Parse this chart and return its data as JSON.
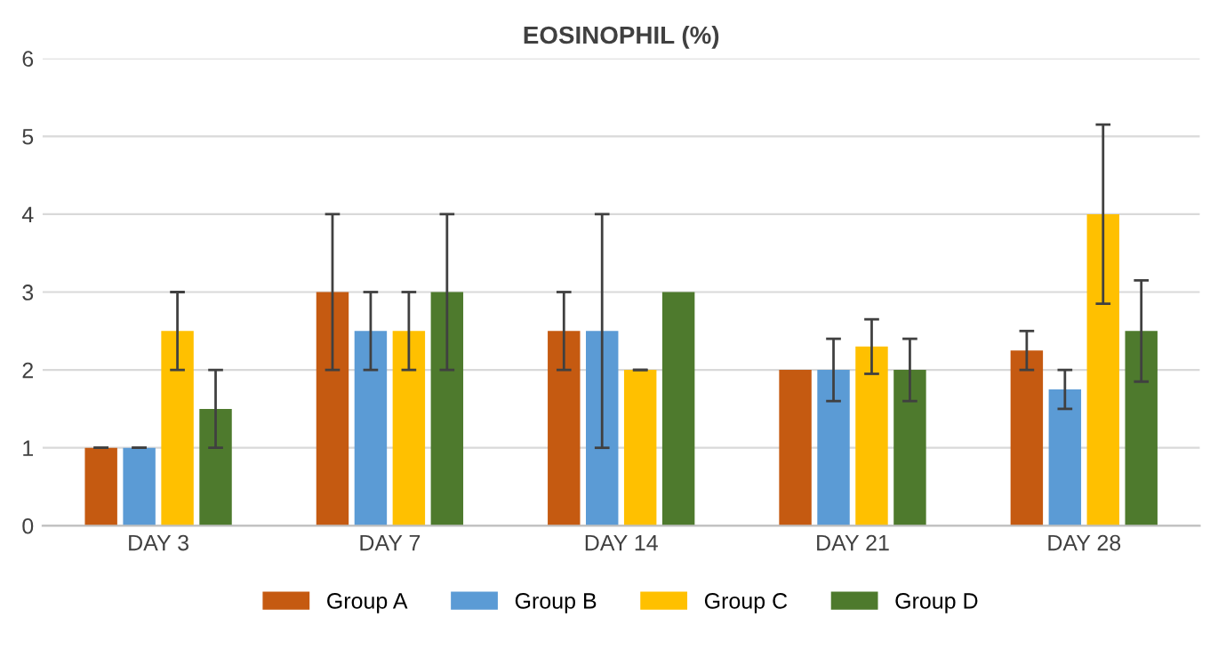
{
  "chart_data": {
    "type": "bar",
    "title": "EOSINOPHIL (%)",
    "categories": [
      "DAY 3",
      "DAY 7",
      "DAY 14",
      "DAY 21",
      "DAY 28"
    ],
    "series": [
      {
        "name": "Group A",
        "color": "#c55a11",
        "values": [
          1,
          3,
          2.5,
          2,
          2.25
        ],
        "errors": [
          0,
          1,
          0.5,
          null,
          0.25
        ]
      },
      {
        "name": "Group B",
        "color": "#5b9bd5",
        "values": [
          1,
          2.5,
          2.5,
          2,
          1.75
        ],
        "errors": [
          0,
          0.5,
          1.5,
          0.4,
          0.25
        ]
      },
      {
        "name": "Group C",
        "color": "#ffc000",
        "values": [
          2.5,
          2.5,
          2,
          2.3,
          4
        ],
        "errors": [
          0.5,
          0.5,
          0,
          0.35,
          1.15
        ]
      },
      {
        "name": "Group D",
        "color": "#4e7a2d",
        "values": [
          1.5,
          3,
          3,
          2,
          2.5
        ],
        "errors": [
          0.5,
          1,
          null,
          0.4,
          0.65
        ]
      }
    ],
    "ylim": [
      0,
      6
    ],
    "yticks": [
      0,
      1,
      2,
      3,
      4,
      5,
      6
    ],
    "grid": "y",
    "legend": "bottom"
  }
}
